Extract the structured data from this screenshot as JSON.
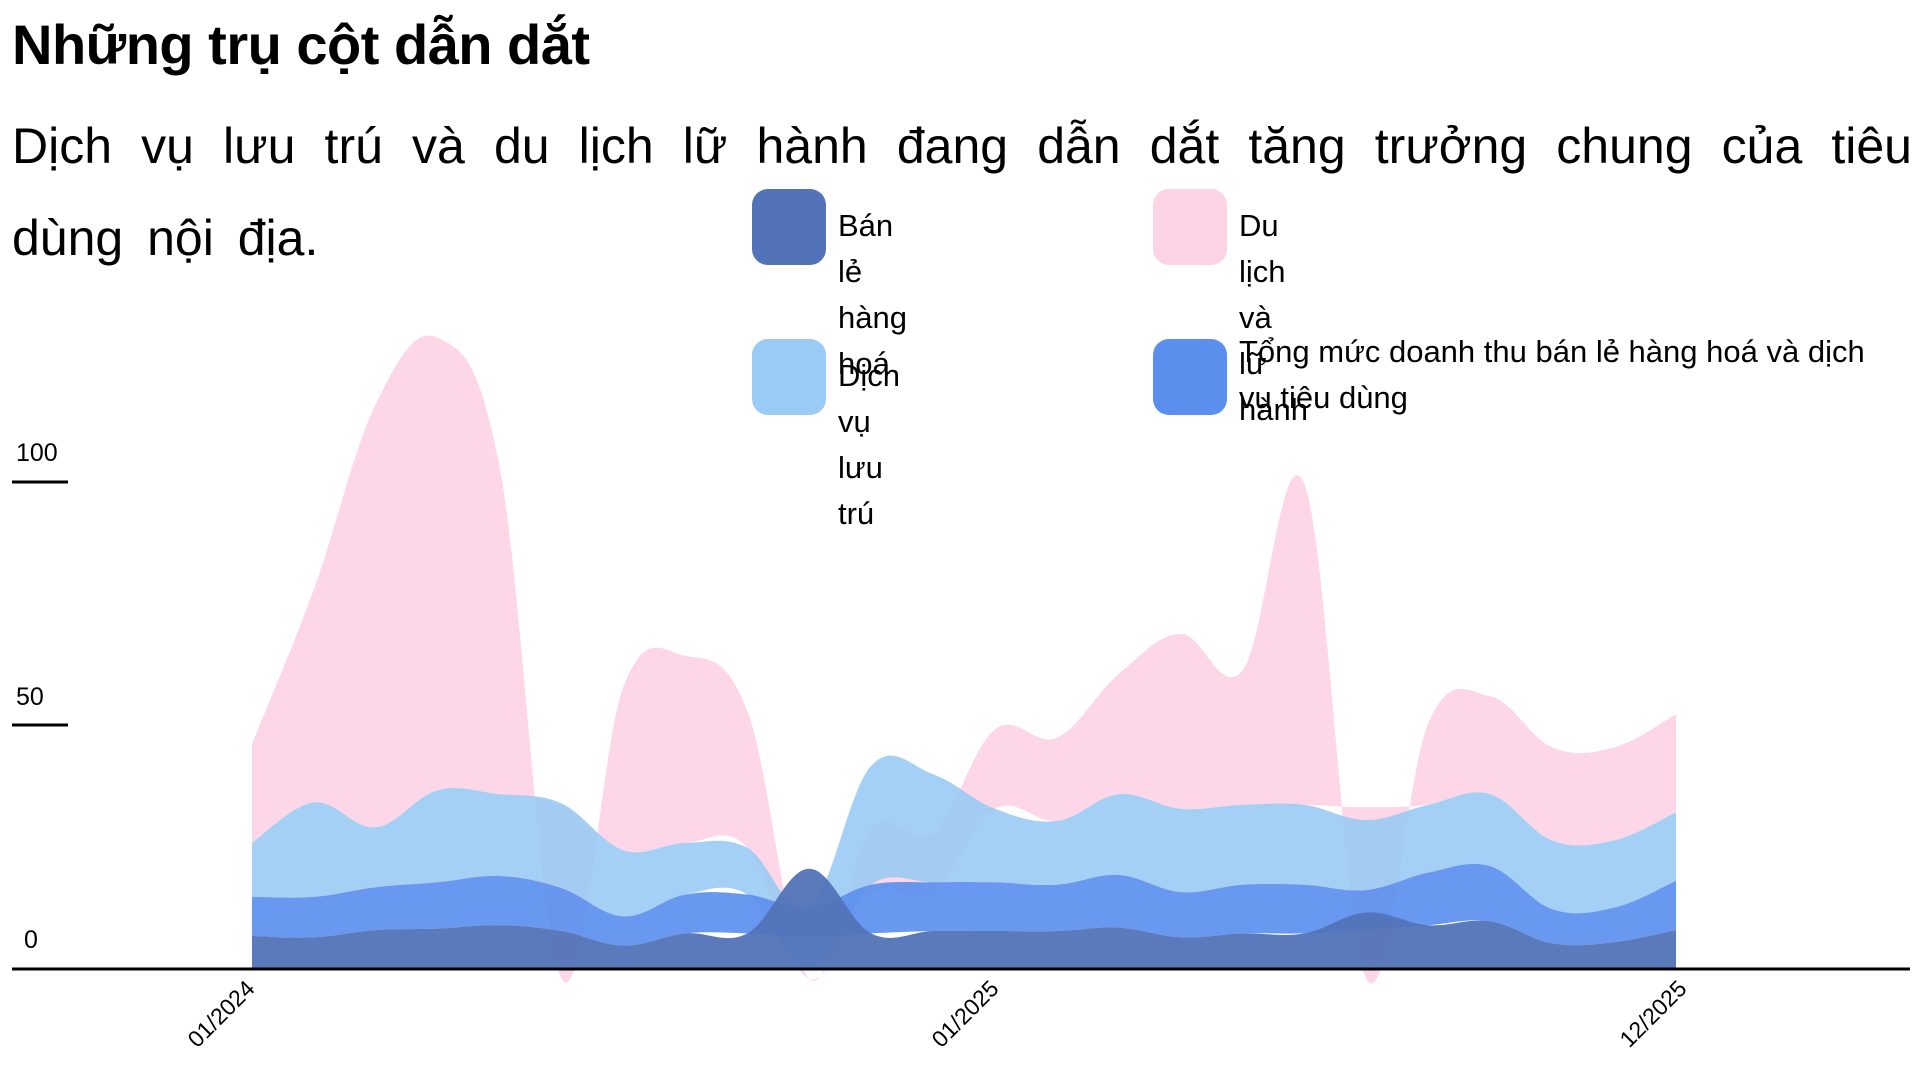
{
  "header": {
    "title": "Những trụ cột dẫn dắt",
    "subtitle": "Dịch vụ lưu trú và du lịch lữ hành đang dẫn dắt tăng trưởng chung của tiêu dùng nội địa."
  },
  "legend": [
    {
      "label": "Bán lẻ hàng hoá",
      "color": "#5273B8"
    },
    {
      "label": "Du lịch và lữ hành",
      "color": "#FDD3E6"
    },
    {
      "label": "Dịch vụ lưu trú",
      "color": "#9ACBF4"
    },
    {
      "label": "Tổng mức doanh thu bán lẻ hàng hoá và dịch vụ tiêu dùng",
      "color": "#5B8FEE"
    }
  ],
  "axes": {
    "y_ticks": [
      {
        "label": "100",
        "value": 100
      },
      {
        "label": "50",
        "value": 50
      },
      {
        "label": "0",
        "value": 0
      }
    ],
    "x_ticks": [
      {
        "label": "01/2024",
        "index": 0
      },
      {
        "label": "01/2025",
        "index": 12
      },
      {
        "label": "12/2025",
        "index": 23
      }
    ]
  },
  "chart_data": {
    "type": "area",
    "stacked": true,
    "title": "Những trụ cột dẫn dắt",
    "subtitle": "Dịch vụ lưu trú và du lịch lữ hành đang dẫn dắt tăng trưởng chung của tiêu dùng nội địa.",
    "xlabel": "",
    "ylabel": "",
    "ylim": [
      0,
      130
    ],
    "grid": false,
    "legend_position": "top-right",
    "x": [
      "01/2024",
      "02/2024",
      "03/2024",
      "04/2024",
      "05/2024",
      "06/2024",
      "07/2024",
      "08/2024",
      "09/2024",
      "10/2024",
      "11/2024",
      "12/2024",
      "01/2025",
      "02/2025",
      "03/2025",
      "04/2025",
      "05/2025",
      "06/2025",
      "07/2025",
      "08/2025",
      "09/2025",
      "10/2025",
      "11/2025",
      "12/2025"
    ],
    "series": [
      {
        "name": "Bán lẻ hàng hoá",
        "color": "#5273B8",
        "values": [
          6.8,
          6.5,
          8.0,
          8.3,
          9.0,
          7.8,
          4.8,
          7.3,
          7.3,
          20.6,
          7.3,
          7.8,
          7.8,
          7.8,
          8.5,
          6.5,
          7.3,
          7.3,
          11.6,
          9.0,
          9.8,
          5.3,
          5.5,
          8.0
        ]
      },
      {
        "name": "Tổng mức doanh thu bán lẻ hàng hoá và dịch vụ tiêu dùng",
        "color": "#5B8FEE",
        "values": [
          8.0,
          8.3,
          8.8,
          9.5,
          10.1,
          8.8,
          6.0,
          8.0,
          8.0,
          -8.0,
          10.0,
          10.0,
          10.0,
          9.5,
          10.8,
          9.3,
          10.0,
          10.0,
          8.2,
          10.8,
          11.3,
          7.0,
          7.1,
          10.1
        ]
      },
      {
        "name": "Dịch vụ lưu trú",
        "color": "#9ACBF4",
        "values": [
          11.1,
          19.4,
          12.3,
          18.9,
          16.8,
          17.4,
          13.6,
          10.6,
          9.6,
          -12.6,
          24.4,
          22.2,
          15.1,
          13.1,
          16.6,
          17.1,
          16.4,
          16.4,
          14.4,
          13.9,
          14.8,
          14.1,
          13.8,
          14.1
        ]
      },
      {
        "name": "Du lịch và lữ hành",
        "color": "#FDD3E6",
        "values": [
          20.3,
          43.8,
          86.9,
          92.9,
          67.1,
          -36.0,
          33.6,
          38.4,
          28.1,
          -2.0,
          -13.1,
          -12.1,
          16.3,
          17.1,
          24.7,
          35.9,
          27.6,
          65.8,
          -36.2,
          16.8,
          20.1,
          19.1,
          19.1,
          20.1
        ]
      }
    ]
  },
  "render": {
    "bounds": {
      "retail": {
        "lo": [
          0,
          0,
          0,
          0,
          0,
          0,
          0,
          0,
          0,
          0,
          0,
          0,
          0,
          0,
          0,
          0,
          0,
          0,
          0,
          0,
          0,
          0,
          0,
          0
        ],
        "hi": [
          6.8,
          6.5,
          8.0,
          8.3,
          9.0,
          7.8,
          4.8,
          7.3,
          7.3,
          20.6,
          7.3,
          7.8,
          7.8,
          7.8,
          8.5,
          6.5,
          7.3,
          7.3,
          11.6,
          9.0,
          9.8,
          5.3,
          5.5,
          8.0
        ]
      },
      "total": {
        "lo": [
          6.8,
          6.5,
          8.0,
          8.3,
          9.0,
          7.8,
          4.8,
          7.3,
          7.3,
          6.5,
          7.3,
          7.8,
          7.8,
          7.8,
          8.5,
          6.5,
          7.3,
          7.3,
          8.0,
          9.0,
          9.8,
          5.3,
          5.5,
          8.0
        ],
        "hi": [
          14.8,
          14.8,
          16.8,
          17.8,
          19.1,
          16.6,
          10.8,
          15.3,
          15.3,
          12.6,
          17.3,
          17.8,
          17.8,
          17.3,
          19.3,
          15.8,
          17.3,
          17.3,
          16.2,
          19.8,
          21.1,
          12.3,
          12.6,
          18.1
        ]
      },
      "lodging": {
        "lo": [
          14.8,
          14.8,
          16.8,
          17.8,
          19.1,
          16.6,
          10.8,
          15.3,
          15.3,
          0.2,
          17.3,
          17.8,
          17.8,
          17.3,
          19.3,
          15.8,
          17.3,
          17.3,
          16.2,
          19.8,
          21.1,
          12.3,
          12.6,
          18.1
        ],
        "hi": [
          25.9,
          34.2,
          29.1,
          36.7,
          35.9,
          34.0,
          24.4,
          25.9,
          24.9,
          12.6,
          41.7,
          40.0,
          32.9,
          30.4,
          35.9,
          32.9,
          33.7,
          33.7,
          30.6,
          33.7,
          35.9,
          26.4,
          26.4,
          32.2
        ]
      },
      "travel": {
        "lo": [
          25.9,
          34.2,
          29.1,
          36.7,
          35.9,
          33.5,
          24.4,
          25.9,
          24.9,
          -2.0,
          15.5,
          16.0,
          32.9,
          30.4,
          35.9,
          32.9,
          33.7,
          33.7,
          33.2,
          33.7,
          35.9,
          26.4,
          26.4,
          32.2
        ],
        "hi": [
          46.2,
          78.0,
          116.0,
          129.6,
          103.0,
          -2.0,
          58.0,
          64.3,
          53.0,
          -2.0,
          28.6,
          27.9,
          49.2,
          47.5,
          60.6,
          68.8,
          61.3,
          99.5,
          -2.0,
          50.5,
          56.0,
          45.5,
          45.5,
          52.3
        ]
      }
    }
  }
}
